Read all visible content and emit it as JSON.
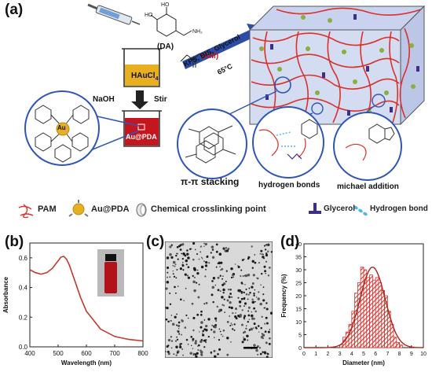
{
  "panel_a": {
    "letter": "(a)",
    "da_label": "(DA)",
    "am_label": "(AM)",
    "haucl4_label": "HAuCl",
    "haucl4_sub": "4",
    "naoh_label": "NaOH",
    "stir_label": "Stir",
    "aupda_label": "Au@PDA",
    "au_atom_label": "Au",
    "conditions_label": "KPS, BIS, Glycerol",
    "temp_label": "65°C",
    "detail_labels": [
      "π-π stacking",
      "hydrogen bonds",
      "michael addition"
    ],
    "colors": {
      "pam": "#d9312b",
      "gold": "#e8b020",
      "liquid_red": "#c3161f",
      "glycerol": "#3c2e8a",
      "arrow_blue": "#2b4da8"
    }
  },
  "legend": {
    "items": [
      {
        "icon": "pam-network-icon",
        "label": "PAM"
      },
      {
        "icon": "au-pda-icon",
        "label": "Au@PDA"
      },
      {
        "icon": "crosslink-point-icon",
        "label": "Chemical crosslinking point"
      },
      {
        "icon": "glycerol-icon",
        "label": "Glycerol"
      },
      {
        "icon": "hydrogen-bond-icon",
        "label": "Hydrogen bond"
      }
    ]
  },
  "panel_b": {
    "letter": "(b)"
  },
  "panel_c": {
    "letter": "(c)"
  },
  "panel_d": {
    "letter": "(d)"
  },
  "chart_data": [
    {
      "type": "line",
      "panel": "(b)",
      "xlabel": "Wavelength (nm)",
      "ylabel": "Absorbance",
      "xlim": [
        400,
        800
      ],
      "ylim": [
        0.0,
        0.7
      ],
      "xticks": [
        400,
        500,
        600,
        700,
        800
      ],
      "yticks": [
        0.0,
        0.2,
        0.4,
        0.6
      ],
      "color": "#c0392b",
      "x": [
        400,
        420,
        440,
        460,
        480,
        500,
        510,
        520,
        530,
        540,
        560,
        580,
        600,
        650,
        700,
        750,
        800
      ],
      "y": [
        0.52,
        0.5,
        0.49,
        0.5,
        0.53,
        0.58,
        0.605,
        0.61,
        0.59,
        0.55,
        0.44,
        0.33,
        0.24,
        0.12,
        0.07,
        0.05,
        0.04
      ]
    },
    {
      "type": "bar",
      "panel": "(d)",
      "xlabel": "Diameter (nm)",
      "ylabel": "Frequency (%)",
      "xlim": [
        0,
        10
      ],
      "ylim": [
        0,
        40
      ],
      "xticks": [
        0,
        1,
        2,
        3,
        4,
        5,
        6,
        7,
        8,
        9,
        10
      ],
      "yticks": [
        0,
        5,
        10,
        15,
        20,
        25,
        30,
        35,
        40
      ],
      "bin_width": 0.25,
      "bar_color": "#d9312b",
      "bin_starts": [
        3.0,
        3.25,
        3.5,
        3.75,
        4.0,
        4.25,
        4.5,
        4.75,
        5.0,
        5.25,
        5.5,
        5.75,
        6.0,
        6.25,
        6.5,
        6.75,
        7.0,
        7.25,
        7.5,
        7.75,
        8.0
      ],
      "values": [
        1,
        4,
        6,
        9,
        14,
        21,
        25,
        31,
        30,
        27,
        28,
        26,
        27,
        25,
        22,
        20,
        14,
        9,
        4,
        2,
        1
      ],
      "fit": {
        "type": "gaussian",
        "mean": 5.75,
        "sigma": 1.05,
        "peak": 31
      }
    }
  ]
}
